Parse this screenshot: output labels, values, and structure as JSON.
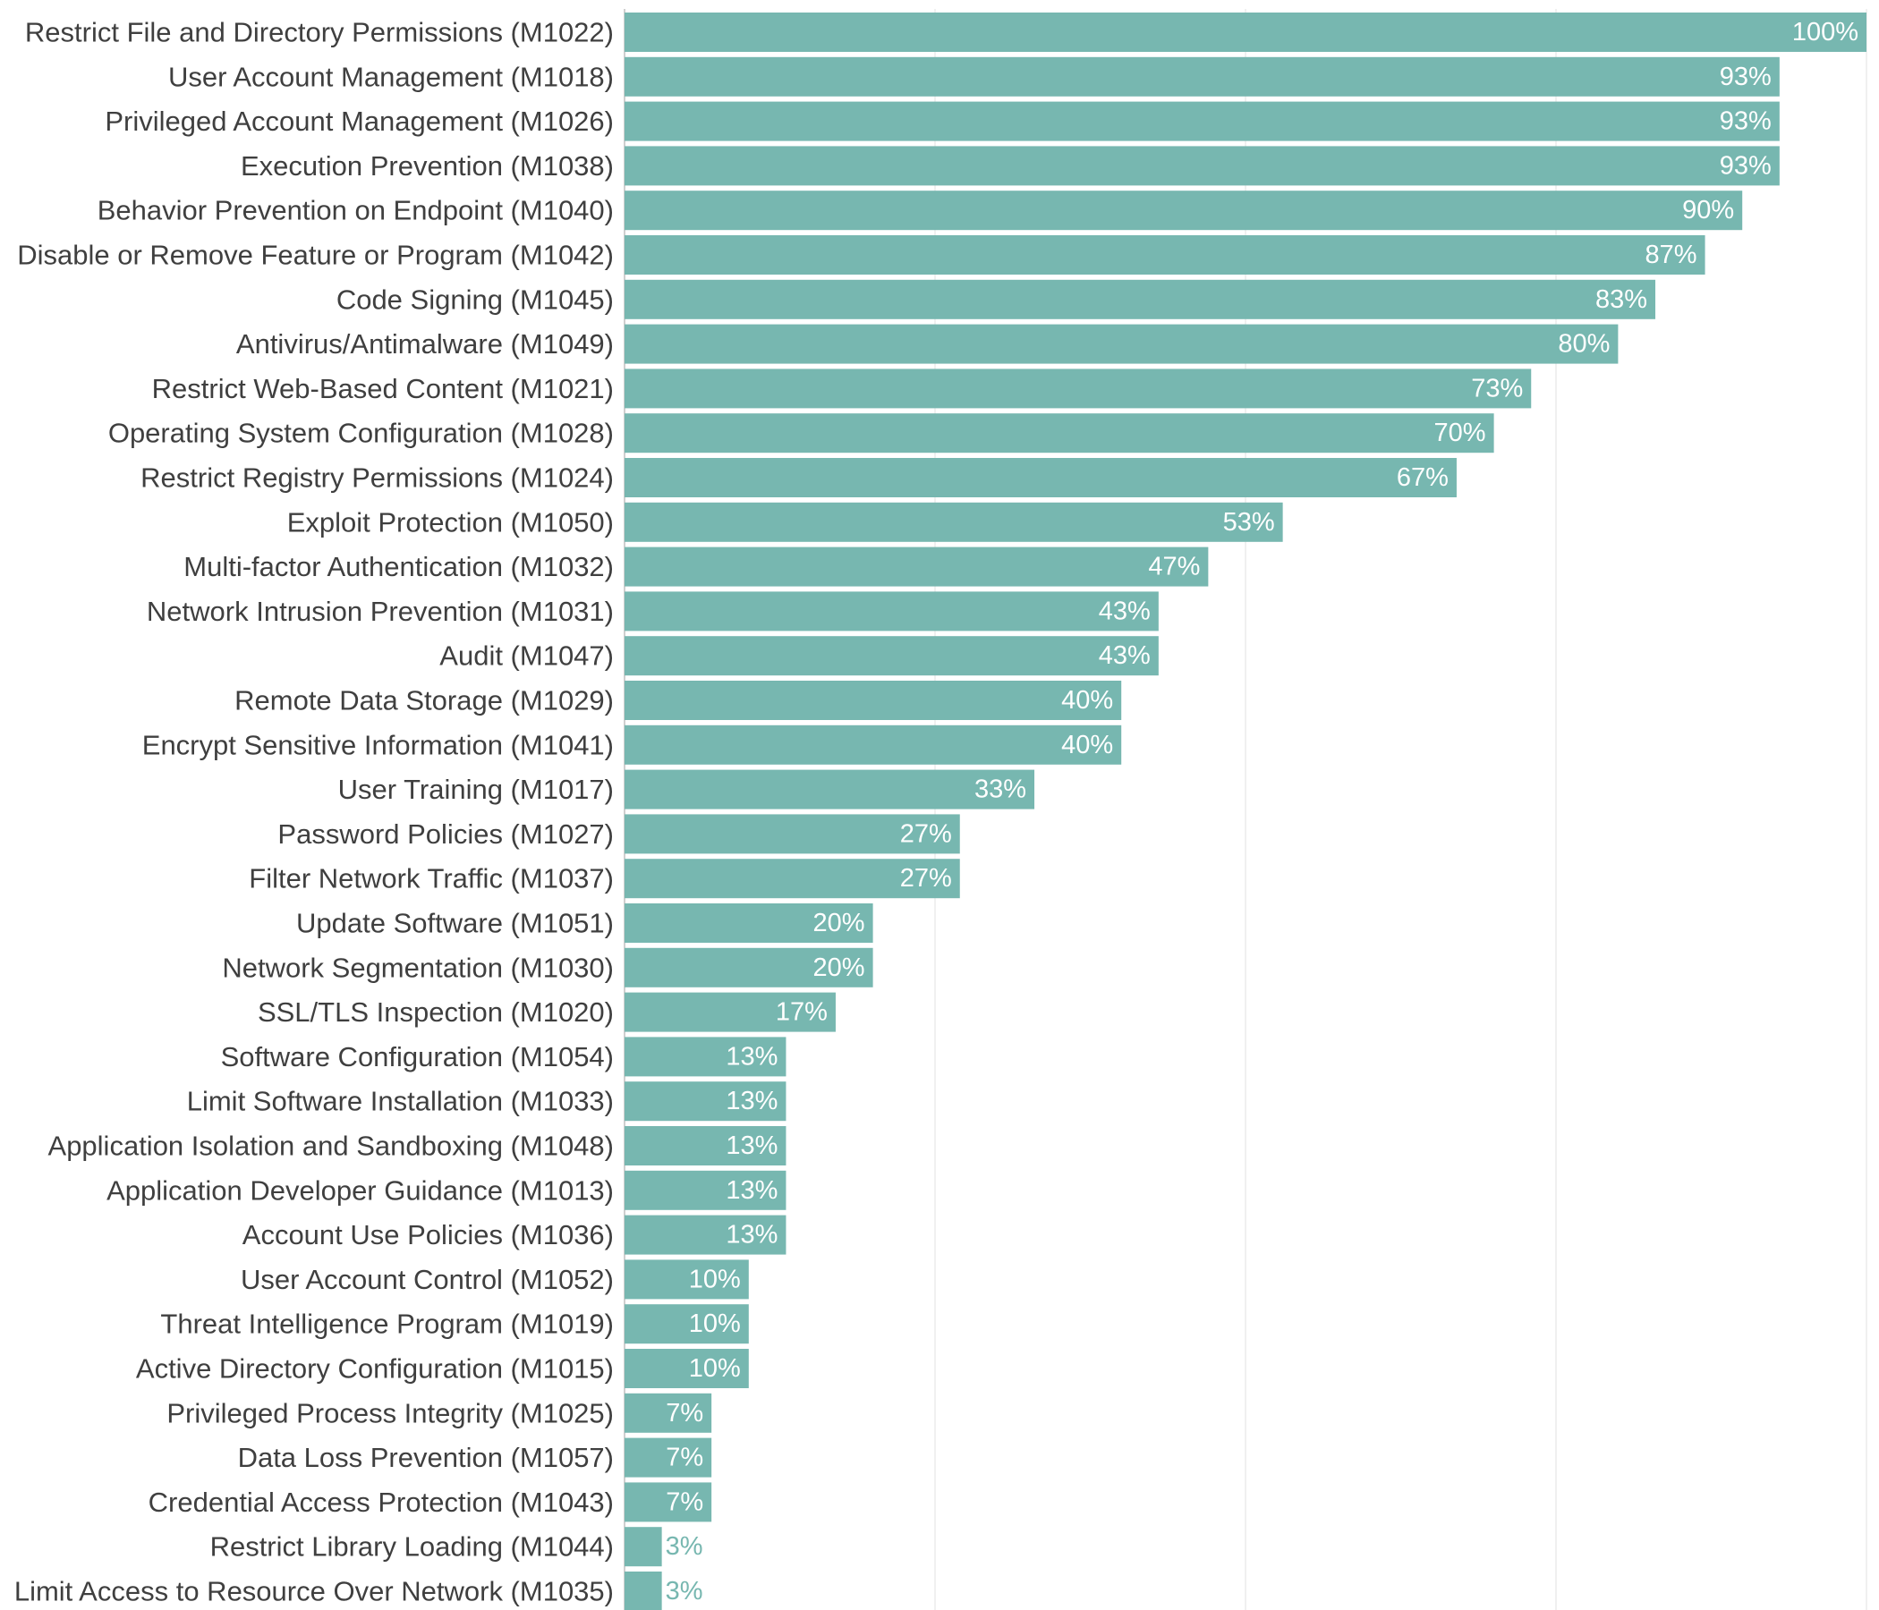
{
  "chart_data": {
    "type": "bar",
    "orientation": "horizontal",
    "title": "",
    "xlabel": "",
    "ylabel": "",
    "xlim": [
      0,
      100
    ],
    "grid": true,
    "gridlines_at": [
      0,
      25,
      50,
      75,
      100
    ],
    "value_format": "percent",
    "colors": {
      "bar": "#77b7b0",
      "label_inside": "#ffffff",
      "label_outside": "#77b7b0"
    },
    "categories": [
      "Restrict File and Directory Permissions (M1022)",
      "User Account Management (M1018)",
      "Privileged Account Management (M1026)",
      "Execution Prevention (M1038)",
      "Behavior Prevention on Endpoint (M1040)",
      "Disable or Remove Feature or Program (M1042)",
      "Code Signing (M1045)",
      "Antivirus/Antimalware (M1049)",
      "Restrict Web-Based Content (M1021)",
      "Operating System Configuration (M1028)",
      "Restrict Registry Permissions (M1024)",
      "Exploit Protection (M1050)",
      "Multi-factor Authentication (M1032)",
      "Network Intrusion Prevention (M1031)",
      "Audit (M1047)",
      "Remote Data Storage (M1029)",
      "Encrypt Sensitive Information (M1041)",
      "User Training (M1017)",
      "Password Policies (M1027)",
      "Filter Network Traffic (M1037)",
      "Update Software (M1051)",
      "Network Segmentation (M1030)",
      "SSL/TLS Inspection (M1020)",
      "Software Configuration (M1054)",
      "Limit Software Installation (M1033)",
      "Application Isolation and Sandboxing (M1048)",
      "Application Developer Guidance (M1013)",
      "Account Use Policies (M1036)",
      "User Account Control (M1052)",
      "Threat Intelligence Program (M1019)",
      "Active Directory Configuration (M1015)",
      "Privileged Process Integrity (M1025)",
      "Data Loss Prevention (M1057)",
      "Credential Access Protection (M1043)",
      "Restrict Library Loading (M1044)",
      "Limit Access to Resource Over Network (M1035)"
    ],
    "values": [
      100,
      93,
      93,
      93,
      90,
      87,
      83,
      80,
      73,
      70,
      67,
      53,
      47,
      43,
      43,
      40,
      40,
      33,
      27,
      27,
      20,
      20,
      17,
      13,
      13,
      13,
      13,
      13,
      10,
      10,
      10,
      7,
      7,
      7,
      3,
      3
    ]
  }
}
